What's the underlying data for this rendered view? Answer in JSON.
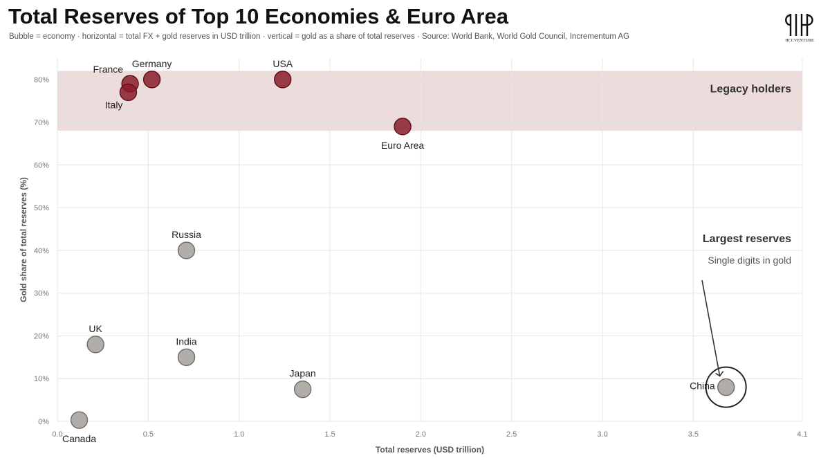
{
  "header": {
    "title": "Total Reserves of Top 10 Economies & Euro Area",
    "subtitle": "Bubble = economy · horizontal = total FX + gold reserves in USD trillion · vertical = gold as a share of total reserves · Source: World Bank, World Gold Council, Incrementum AG"
  },
  "logo": {
    "text": "HCCVENTURE"
  },
  "colors": {
    "legacy_fill": "#8a1c2b",
    "other_fill": "#a9a49f",
    "band_fill": "#ecdcdc",
    "annotation_text": "#333333"
  },
  "chart_data": {
    "type": "scatter",
    "title": "Total Reserves of Top 10 Economies & Euro Area",
    "xlabel": "Total reserves (USD trillion)",
    "ylabel": "Gold share of total reserves (%)",
    "xlim": [
      0,
      4.1
    ],
    "ylim": [
      0,
      85
    ],
    "x_ticks": [
      0,
      0.5,
      1,
      1.5,
      2,
      2.5,
      3,
      3.5,
      4.1
    ],
    "x_tick_labels": [
      "0.0",
      "0.5",
      "1.0",
      "1.5",
      "2.0",
      "2.5",
      "3.0",
      "3.5",
      "4.1"
    ],
    "y_ticks": [
      0,
      10,
      20,
      30,
      40,
      50,
      60,
      70,
      80
    ],
    "y_tick_labels": [
      "0%",
      "10%",
      "20%",
      "30%",
      "40%",
      "50%",
      "60%",
      "70%",
      "80%"
    ],
    "grid": true,
    "band": {
      "y_range": [
        68,
        82
      ],
      "label": "Legacy holders"
    },
    "points": [
      {
        "name": "USA",
        "x": 1.24,
        "y": 80,
        "group": "legacy",
        "label_pos": "above"
      },
      {
        "name": "Germany",
        "x": 0.52,
        "y": 80,
        "group": "legacy",
        "label_pos": "above"
      },
      {
        "name": "France",
        "x": 0.4,
        "y": 79,
        "group": "legacy",
        "label_pos": "above-left"
      },
      {
        "name": "Italy",
        "x": 0.39,
        "y": 77,
        "group": "legacy",
        "label_pos": "below-left"
      },
      {
        "name": "Euro Area",
        "x": 1.9,
        "y": 69,
        "group": "legacy",
        "label_pos": "below"
      },
      {
        "name": "Russia",
        "x": 0.71,
        "y": 40,
        "group": "other",
        "label_pos": "above"
      },
      {
        "name": "UK",
        "x": 0.21,
        "y": 18,
        "group": "other",
        "label_pos": "above"
      },
      {
        "name": "India",
        "x": 0.71,
        "y": 15,
        "group": "other",
        "label_pos": "above"
      },
      {
        "name": "Japan",
        "x": 1.35,
        "y": 7.5,
        "group": "other",
        "label_pos": "above"
      },
      {
        "name": "China",
        "x": 3.68,
        "y": 8,
        "group": "other",
        "label_pos": "left"
      },
      {
        "name": "Canada",
        "x": 0.12,
        "y": 0.3,
        "group": "other",
        "label_pos": "below"
      }
    ],
    "annotations": [
      {
        "title": "Largest reserves",
        "text": "Single digits in gold",
        "target": "China"
      }
    ]
  }
}
